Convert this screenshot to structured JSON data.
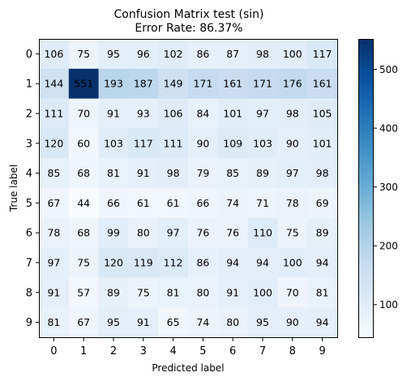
{
  "chart_data": {
    "type": "heatmap",
    "title_line1": "Confusion Matrix  test (sin)",
    "title_line2": "Error Rate: 86.37%",
    "xlabel": "Predicted label",
    "ylabel": "True label",
    "x_categories": [
      "0",
      "1",
      "2",
      "3",
      "4",
      "5",
      "6",
      "7",
      "8",
      "9"
    ],
    "y_categories": [
      "0",
      "1",
      "2",
      "3",
      "4",
      "5",
      "6",
      "7",
      "8",
      "9"
    ],
    "values": [
      [
        106,
        75,
        95,
        96,
        102,
        86,
        87,
        98,
        100,
        117
      ],
      [
        144,
        551,
        193,
        187,
        149,
        171,
        161,
        171,
        176,
        161
      ],
      [
        111,
        70,
        91,
        93,
        106,
        84,
        101,
        97,
        98,
        105
      ],
      [
        120,
        60,
        103,
        117,
        111,
        90,
        109,
        103,
        90,
        101
      ],
      [
        85,
        68,
        81,
        91,
        98,
        79,
        85,
        89,
        97,
        98
      ],
      [
        67,
        44,
        66,
        61,
        61,
        66,
        74,
        71,
        78,
        69
      ],
      [
        78,
        68,
        99,
        80,
        97,
        76,
        76,
        110,
        75,
        89
      ],
      [
        97,
        75,
        120,
        119,
        112,
        86,
        94,
        94,
        100,
        94
      ],
      [
        91,
        57,
        89,
        75,
        81,
        80,
        91,
        100,
        70,
        81
      ],
      [
        81,
        67,
        95,
        91,
        65,
        74,
        80,
        95,
        90,
        94
      ]
    ],
    "colormap": "Blues",
    "color_low": "#f7fbff",
    "color_high": "#08306b",
    "colorbar": {
      "min": 44,
      "max": 551,
      "ticks": [
        100,
        200,
        300,
        400,
        500
      ]
    },
    "grid": false
  }
}
